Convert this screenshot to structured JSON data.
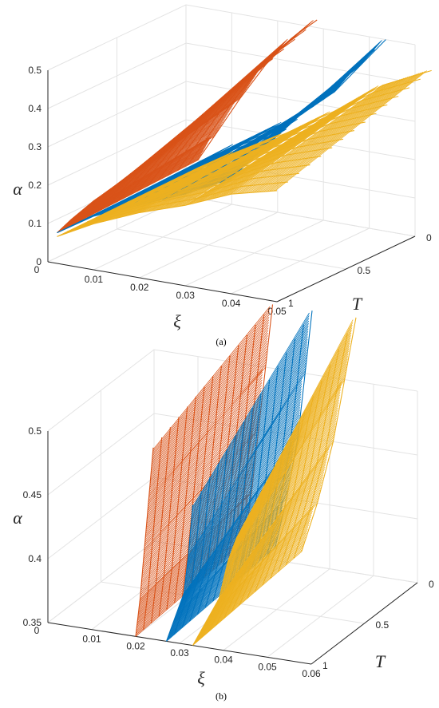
{
  "chart_data": [
    {
      "panel": "a",
      "caption": "(a)",
      "type": "surface",
      "xlabel": "ξ",
      "ylabel": "T",
      "zlabel": "α",
      "xlim": [
        0,
        0.05
      ],
      "ylim": [
        0,
        1
      ],
      "zlim": [
        0,
        0.5
      ],
      "xticks": [
        "0",
        "0.01",
        "0.02",
        "0.03",
        "0.04",
        "0.05"
      ],
      "yticks": [
        "0",
        "0.5",
        "1"
      ],
      "zticks": [
        "0",
        "0.1",
        "0.2",
        "0.3",
        "0.4",
        "0.5"
      ],
      "grid": true,
      "series": [
        {
          "color": "#D95319",
          "xi": [
            0.002,
            0.005,
            0.01,
            0.015,
            0.02,
            0.025
          ],
          "alpha_at_T1": [
            0.08,
            0.12,
            0.18,
            0.23,
            0.28,
            0.33
          ],
          "alpha_at_T0": [
            0.1,
            0.17,
            0.28,
            0.38,
            0.46,
            0.52
          ]
        },
        {
          "color": "#0072BD",
          "xi": [
            0.002,
            0.01,
            0.02,
            0.03,
            0.035,
            0.04
          ],
          "alpha_at_T1": [
            0.08,
            0.14,
            0.19,
            0.24,
            0.27,
            0.3
          ],
          "alpha_at_T0": [
            0.09,
            0.16,
            0.24,
            0.34,
            0.42,
            0.5
          ]
        },
        {
          "color": "#EDB120",
          "xi": [
            0.002,
            0.01,
            0.02,
            0.03,
            0.04,
            0.05
          ],
          "alpha_at_T1": [
            0.07,
            0.12,
            0.17,
            0.21,
            0.26,
            0.29
          ],
          "alpha_at_T0": [
            0.08,
            0.14,
            0.21,
            0.29,
            0.38,
            0.44
          ]
        }
      ]
    },
    {
      "panel": "b",
      "caption": "(b)",
      "type": "surface",
      "xlabel": "ξ",
      "ylabel": "T",
      "zlabel": "α",
      "xlim": [
        0,
        0.06
      ],
      "ylim": [
        0,
        1
      ],
      "zlim": [
        0.35,
        0.5
      ],
      "xticks": [
        "0",
        "0.01",
        "0.02",
        "0.03",
        "0.04",
        "0.05",
        "0.06"
      ],
      "yticks": [
        "0",
        "0.5",
        "1"
      ],
      "zticks": [
        "0.35",
        "0.4",
        "0.45",
        "0.5"
      ],
      "grid": true,
      "series": [
        {
          "color": "#D95319",
          "xi": [
            0.02,
            0.021,
            0.022,
            0.023,
            0.024
          ],
          "alpha_at_T1": [
            0.35,
            0.38,
            0.42,
            0.46,
            0.5
          ],
          "alpha_at_T0": [
            0.36,
            0.4,
            0.45,
            0.5,
            0.55
          ]
        },
        {
          "color": "#0072BD",
          "xi": [
            0.027,
            0.029,
            0.031,
            0.032,
            0.033
          ],
          "alpha_at_T1": [
            0.35,
            0.37,
            0.39,
            0.42,
            0.46
          ],
          "alpha_at_T0": [
            0.36,
            0.4,
            0.45,
            0.5,
            0.55
          ]
        },
        {
          "color": "#EDB120",
          "xi": [
            0.033,
            0.036,
            0.039,
            0.041,
            0.043
          ],
          "alpha_at_T1": [
            0.35,
            0.37,
            0.39,
            0.42,
            0.44
          ],
          "alpha_at_T0": [
            0.36,
            0.4,
            0.45,
            0.5,
            0.55
          ]
        }
      ]
    }
  ]
}
